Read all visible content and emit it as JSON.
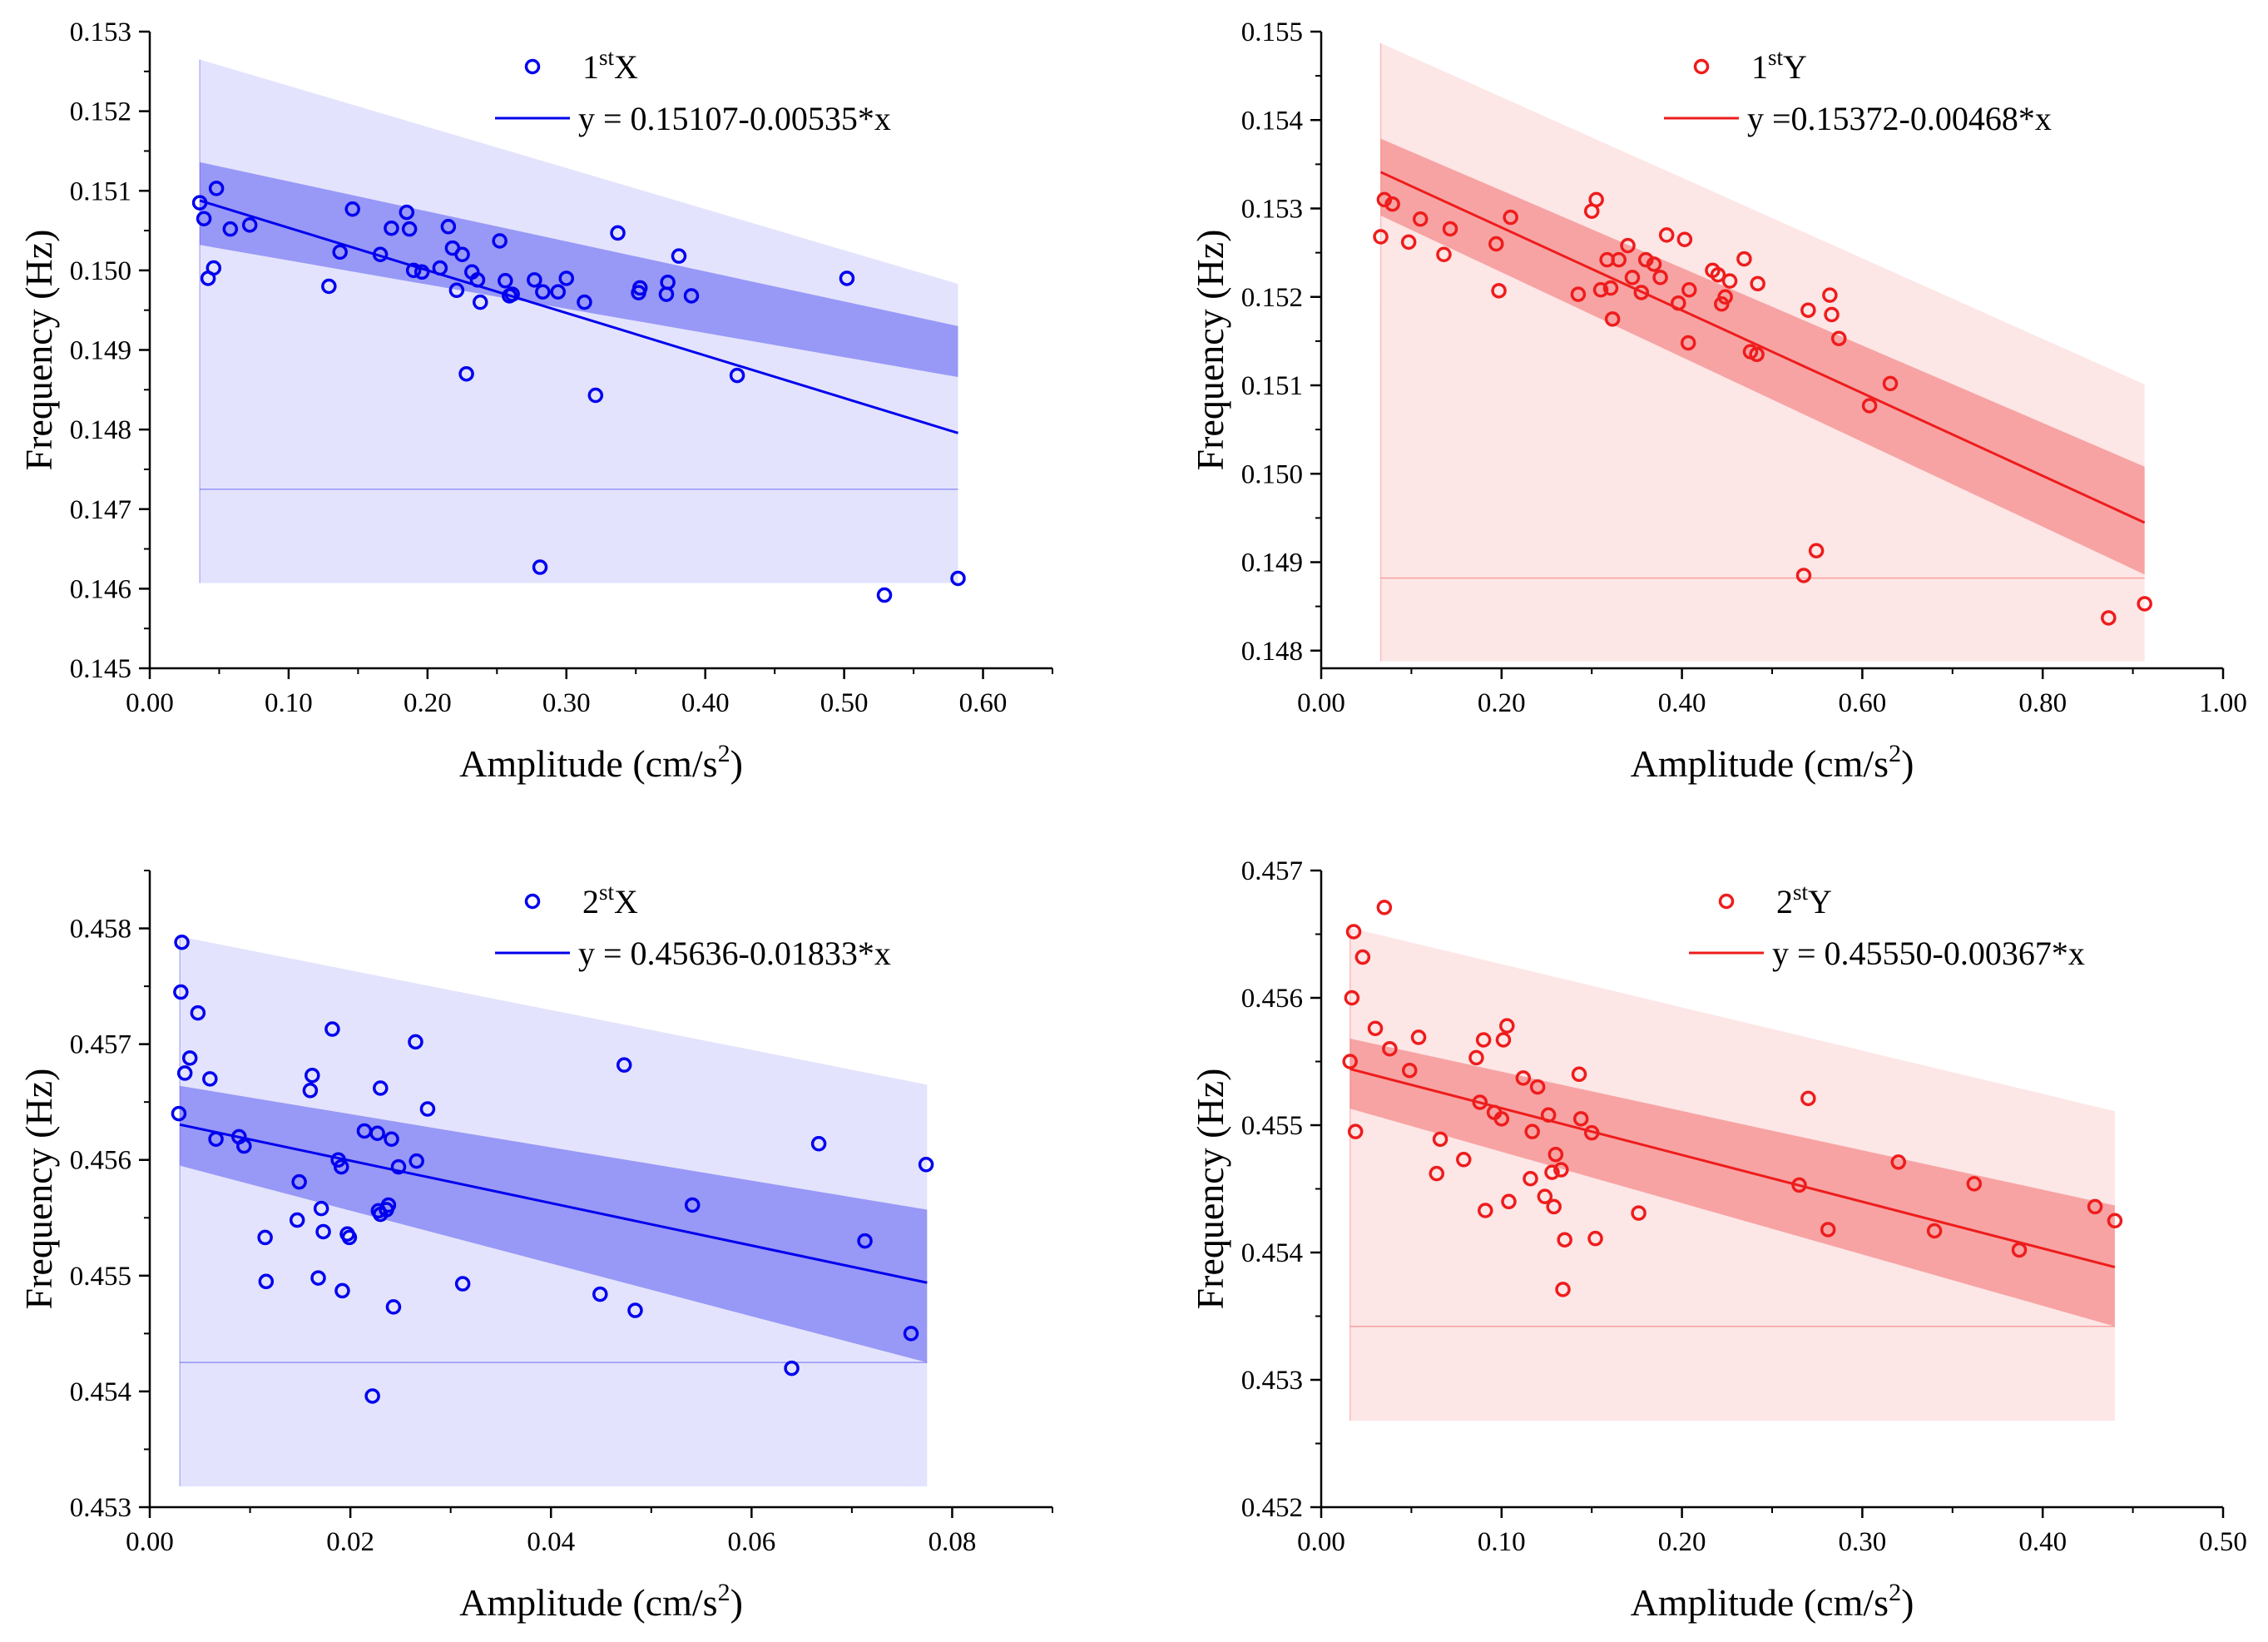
{
  "chart_data": [
    {
      "type": "scatter",
      "id": "p1",
      "color": "#0000ee",
      "legend": {
        "marker_label": "1",
        "marker_sup": "st",
        "marker_suffix": "X",
        "fit_label": "y = 0.15107-0.00535*x"
      },
      "xlabel": "Amplitude (cm/s",
      "xlabel_sup": "2",
      "xlabel_end": ")",
      "ylabel": "Frequency (Hz)",
      "xlim": [
        0.0,
        0.65
      ],
      "ylim": [
        0.145,
        0.153
      ],
      "xticks": [
        0.0,
        0.1,
        0.2,
        0.3,
        0.4,
        0.5,
        0.6
      ],
      "xtick_labels": [
        "0.00",
        "0.10",
        "0.20",
        "0.30",
        "0.40",
        "0.50",
        "0.60"
      ],
      "yticks": [
        0.145,
        0.146,
        0.147,
        0.148,
        0.149,
        0.15,
        0.151,
        0.152,
        0.153
      ],
      "ytick_labels": [
        "0.145",
        "0.146",
        "0.147",
        "0.148",
        "0.149",
        "0.150",
        "0.151",
        "0.152",
        "0.153"
      ],
      "fit": {
        "intercept": 0.15107,
        "slope": -0.00535,
        "xrange": [
          0.036,
          0.582
        ]
      },
      "confidence_band": {
        "x": [
          0.036,
          0.582
        ],
        "lower": [
          0.15032,
          0.14866
        ],
        "upper": [
          0.15136,
          0.1493
        ]
      },
      "prediction_band": {
        "x": [
          0.036,
          0.582
        ],
        "lower": [
          0.14906,
          0.14726
        ],
        "upper": [
          0.15265,
          0.14983
        ]
      },
      "band_floor": [
        0.14725,
        0.14607
      ],
      "points": [
        [
          0.036,
          0.15085
        ],
        [
          0.039,
          0.15065
        ],
        [
          0.042,
          0.1499
        ],
        [
          0.046,
          0.15003
        ],
        [
          0.048,
          0.15103
        ],
        [
          0.058,
          0.15052
        ],
        [
          0.072,
          0.15057
        ],
        [
          0.129,
          0.1498
        ],
        [
          0.137,
          0.15023
        ],
        [
          0.146,
          0.15077
        ],
        [
          0.166,
          0.1502
        ],
        [
          0.174,
          0.15053
        ],
        [
          0.185,
          0.15073
        ],
        [
          0.187,
          0.15052
        ],
        [
          0.19,
          0.15
        ],
        [
          0.196,
          0.14998
        ],
        [
          0.209,
          0.15003
        ],
        [
          0.215,
          0.15055
        ],
        [
          0.218,
          0.15028
        ],
        [
          0.221,
          0.14975
        ],
        [
          0.225,
          0.1502
        ],
        [
          0.228,
          0.1487
        ],
        [
          0.232,
          0.14998
        ],
        [
          0.236,
          0.14988
        ],
        [
          0.238,
          0.1496
        ],
        [
          0.252,
          0.15037
        ],
        [
          0.256,
          0.14987
        ],
        [
          0.259,
          0.14968
        ],
        [
          0.261,
          0.1497
        ],
        [
          0.277,
          0.14988
        ],
        [
          0.281,
          0.14627
        ],
        [
          0.283,
          0.14973
        ],
        [
          0.294,
          0.14973
        ],
        [
          0.3,
          0.1499
        ],
        [
          0.313,
          0.1496
        ],
        [
          0.321,
          0.14843
        ],
        [
          0.337,
          0.15047
        ],
        [
          0.352,
          0.14972
        ],
        [
          0.353,
          0.14978
        ],
        [
          0.372,
          0.1497
        ],
        [
          0.373,
          0.14985
        ],
        [
          0.381,
          0.15018
        ],
        [
          0.39,
          0.14968
        ],
        [
          0.423,
          0.14868
        ],
        [
          0.502,
          0.1499
        ],
        [
          0.529,
          0.14592
        ],
        [
          0.582,
          0.14613
        ]
      ]
    },
    {
      "type": "scatter",
      "id": "p2",
      "color": "#ee1c1c",
      "legend": {
        "marker_label": "1",
        "marker_sup": "st",
        "marker_suffix": "Y",
        "fit_label": "y =0.15372-0.00468*x"
      },
      "xlabel": "Amplitude (cm/s",
      "xlabel_sup": "2",
      "xlabel_end": ")",
      "ylabel": "Frequency (Hz)",
      "xlim": [
        0.0,
        1.0
      ],
      "ylim": [
        0.1478,
        0.155
      ],
      "xticks": [
        0.0,
        0.2,
        0.4,
        0.6,
        0.8,
        1.0
      ],
      "xtick_labels": [
        "0.00",
        "0.20",
        "0.40",
        "0.60",
        "0.80",
        "1.00"
      ],
      "yticks": [
        0.148,
        0.149,
        0.15,
        0.151,
        0.152,
        0.153,
        0.154,
        0.155
      ],
      "ytick_labels": [
        "0.148",
        "0.149",
        "0.150",
        "0.151",
        "0.152",
        "0.153",
        "0.154",
        "0.155"
      ],
      "fit": {
        "intercept": 0.15372,
        "slope": -0.00468,
        "xrange": [
          0.066,
          0.913
        ]
      },
      "confidence_band": {
        "x": [
          0.066,
          0.913
        ],
        "lower": [
          0.15292,
          0.14886
        ],
        "upper": [
          0.15379,
          0.15008
        ]
      },
      "prediction_band": {
        "x": [
          0.066,
          0.913
        ],
        "lower": [
          0.15192,
          0.14809
        ],
        "upper": [
          0.15487,
          0.15101
        ]
      },
      "band_floor": [
        0.14882,
        0.14788
      ],
      "points": [
        [
          0.066,
          0.15268
        ],
        [
          0.07,
          0.1531
        ],
        [
          0.079,
          0.15305
        ],
        [
          0.097,
          0.15262
        ],
        [
          0.11,
          0.15288
        ],
        [
          0.136,
          0.15248
        ],
        [
          0.143,
          0.15277
        ],
        [
          0.194,
          0.1526
        ],
        [
          0.197,
          0.15207
        ],
        [
          0.21,
          0.1529
        ],
        [
          0.285,
          0.15203
        ],
        [
          0.3,
          0.15297
        ],
        [
          0.305,
          0.1531
        ],
        [
          0.31,
          0.15208
        ],
        [
          0.317,
          0.15242
        ],
        [
          0.321,
          0.1521
        ],
        [
          0.323,
          0.15175
        ],
        [
          0.33,
          0.15242
        ],
        [
          0.34,
          0.15258
        ],
        [
          0.345,
          0.15222
        ],
        [
          0.355,
          0.15205
        ],
        [
          0.36,
          0.15242
        ],
        [
          0.369,
          0.15237
        ],
        [
          0.376,
          0.15222
        ],
        [
          0.383,
          0.1527
        ],
        [
          0.396,
          0.15193
        ],
        [
          0.403,
          0.15265
        ],
        [
          0.407,
          0.15148
        ],
        [
          0.408,
          0.15208
        ],
        [
          0.434,
          0.1523
        ],
        [
          0.44,
          0.15225
        ],
        [
          0.444,
          0.15192
        ],
        [
          0.448,
          0.152
        ],
        [
          0.453,
          0.15218
        ],
        [
          0.469,
          0.15243
        ],
        [
          0.476,
          0.15138
        ],
        [
          0.483,
          0.15135
        ],
        [
          0.484,
          0.15215
        ],
        [
          0.535,
          0.14885
        ],
        [
          0.54,
          0.15185
        ],
        [
          0.549,
          0.14913
        ],
        [
          0.564,
          0.15202
        ],
        [
          0.566,
          0.1518
        ],
        [
          0.574,
          0.15153
        ],
        [
          0.608,
          0.15077
        ],
        [
          0.631,
          0.15102
        ],
        [
          0.873,
          0.14837
        ],
        [
          0.913,
          0.14853
        ]
      ]
    },
    {
      "type": "scatter",
      "id": "p3",
      "color": "#0000ee",
      "legend": {
        "marker_label": "2",
        "marker_sup": "st",
        "marker_suffix": "X",
        "fit_label": "y = 0.45636-0.01833*x"
      },
      "xlabel": "Amplitude (cm/s",
      "xlabel_sup": "2",
      "xlabel_end": ")",
      "ylabel": "Frequency (Hz)",
      "xlim": [
        0.0,
        0.09
      ],
      "ylim": [
        0.453,
        0.4585
      ],
      "xticks": [
        0.0,
        0.02,
        0.04,
        0.06,
        0.08
      ],
      "xtick_labels": [
        "0.00",
        "0.02",
        "0.04",
        "0.06",
        "0.08"
      ],
      "yticks": [
        0.453,
        0.454,
        0.455,
        0.456,
        0.457,
        0.458
      ],
      "ytick_labels": [
        "0.453",
        "0.454",
        "0.455",
        "0.456",
        "0.457",
        "0.458"
      ],
      "fit": {
        "intercept": 0.45636,
        "slope": -0.01833,
        "xrange": [
          0.003,
          0.0775
        ]
      },
      "confidence_band": {
        "x": [
          0.003,
          0.0775
        ],
        "lower": [
          0.45595,
          0.45425
        ],
        "upper": [
          0.45664,
          0.45557
        ]
      },
      "prediction_band": {
        "x": [
          0.003,
          0.0775
        ],
        "lower": [
          0.45468,
          0.45318
        ],
        "upper": [
          0.45793,
          0.45665
        ]
      },
      "band_floor": [
        0.45425,
        0.45318
      ],
      "points": [
        [
          0.0029,
          0.4564
        ],
        [
          0.0031,
          0.45745
        ],
        [
          0.0032,
          0.45788
        ],
        [
          0.0035,
          0.45675
        ],
        [
          0.004,
          0.45688
        ],
        [
          0.0048,
          0.45727
        ],
        [
          0.006,
          0.4567
        ],
        [
          0.0066,
          0.45618
        ],
        [
          0.0089,
          0.4562
        ],
        [
          0.0094,
          0.45612
        ],
        [
          0.0115,
          0.45533
        ],
        [
          0.0116,
          0.45495
        ],
        [
          0.0147,
          0.45548
        ],
        [
          0.0149,
          0.45581
        ],
        [
          0.016,
          0.4566
        ],
        [
          0.0162,
          0.45673
        ],
        [
          0.0168,
          0.45498
        ],
        [
          0.0171,
          0.45558
        ],
        [
          0.0173,
          0.45538
        ],
        [
          0.0182,
          0.45713
        ],
        [
          0.0188,
          0.456
        ],
        [
          0.0191,
          0.45594
        ],
        [
          0.0192,
          0.45487
        ],
        [
          0.0197,
          0.45536
        ],
        [
          0.0199,
          0.45533
        ],
        [
          0.0214,
          0.45625
        ],
        [
          0.0222,
          0.45396
        ],
        [
          0.0227,
          0.45623
        ],
        [
          0.0228,
          0.45556
        ],
        [
          0.023,
          0.45553
        ],
        [
          0.023,
          0.45662
        ],
        [
          0.0236,
          0.45557
        ],
        [
          0.0238,
          0.45561
        ],
        [
          0.0241,
          0.45618
        ],
        [
          0.0243,
          0.45473
        ],
        [
          0.0248,
          0.45594
        ],
        [
          0.0265,
          0.45702
        ],
        [
          0.0266,
          0.45599
        ],
        [
          0.0277,
          0.45644
        ],
        [
          0.0312,
          0.45493
        ],
        [
          0.0449,
          0.45484
        ],
        [
          0.0473,
          0.45682
        ],
        [
          0.0484,
          0.4547
        ],
        [
          0.0541,
          0.45561
        ],
        [
          0.064,
          0.4542
        ],
        [
          0.0667,
          0.45614
        ],
        [
          0.0713,
          0.4553
        ],
        [
          0.0759,
          0.4545
        ],
        [
          0.0774,
          0.45596
        ]
      ]
    },
    {
      "type": "scatter",
      "id": "p4",
      "color": "#ee1c1c",
      "legend": {
        "marker_label": "2",
        "marker_sup": "st",
        "marker_suffix": "Y",
        "fit_label": "y = 0.45550-0.00367*x"
      },
      "xlabel": "Amplitude (cm/s",
      "xlabel_sup": "2",
      "xlabel_end": ")",
      "ylabel": "Frequency (Hz)",
      "xlim": [
        0.0,
        0.5
      ],
      "ylim": [
        0.452,
        0.457
      ],
      "xticks": [
        0.0,
        0.1,
        0.2,
        0.3,
        0.4,
        0.5
      ],
      "xtick_labels": [
        "0.00",
        "0.10",
        "0.20",
        "0.30",
        "0.40",
        "0.50"
      ],
      "yticks": [
        0.452,
        0.453,
        0.454,
        0.455,
        0.456,
        0.457
      ],
      "ytick_labels": [
        "0.452",
        "0.453",
        "0.454",
        "0.455",
        "0.456",
        "0.457"
      ],
      "fit": {
        "intercept": 0.4555,
        "slope": -0.00367,
        "xrange": [
          0.016,
          0.44
        ]
      },
      "confidence_band": {
        "x": [
          0.016,
          0.44
        ],
        "lower": [
          0.45513,
          0.45342
        ],
        "upper": [
          0.45568,
          0.45437
        ]
      },
      "prediction_band": {
        "x": [
          0.016,
          0.44
        ],
        "lower": [
          0.45431,
          0.45268
        ],
        "upper": [
          0.45655,
          0.45511
        ]
      },
      "band_floor": [
        0.45342,
        0.45268
      ],
      "points": [
        [
          0.016,
          0.4555
        ],
        [
          0.017,
          0.456
        ],
        [
          0.018,
          0.45652
        ],
        [
          0.019,
          0.45495
        ],
        [
          0.023,
          0.45632
        ],
        [
          0.03,
          0.45576
        ],
        [
          0.035,
          0.45671
        ],
        [
          0.038,
          0.4556
        ],
        [
          0.049,
          0.45543
        ],
        [
          0.054,
          0.45569
        ],
        [
          0.064,
          0.45462
        ],
        [
          0.066,
          0.45489
        ],
        [
          0.079,
          0.45473
        ],
        [
          0.086,
          0.45553
        ],
        [
          0.088,
          0.45518
        ],
        [
          0.09,
          0.45567
        ],
        [
          0.091,
          0.45433
        ],
        [
          0.096,
          0.4551
        ],
        [
          0.1,
          0.45505
        ],
        [
          0.101,
          0.45567
        ],
        [
          0.103,
          0.45578
        ],
        [
          0.104,
          0.4544
        ],
        [
          0.112,
          0.45537
        ],
        [
          0.116,
          0.45458
        ],
        [
          0.117,
          0.45495
        ],
        [
          0.12,
          0.4553
        ],
        [
          0.124,
          0.45444
        ],
        [
          0.126,
          0.45508
        ],
        [
          0.128,
          0.45463
        ],
        [
          0.129,
          0.45436
        ],
        [
          0.13,
          0.45477
        ],
        [
          0.133,
          0.45465
        ],
        [
          0.134,
          0.45371
        ],
        [
          0.135,
          0.4541
        ],
        [
          0.143,
          0.4554
        ],
        [
          0.144,
          0.45505
        ],
        [
          0.15,
          0.45494
        ],
        [
          0.152,
          0.45411
        ],
        [
          0.176,
          0.45431
        ],
        [
          0.265,
          0.45453
        ],
        [
          0.27,
          0.45521
        ],
        [
          0.281,
          0.45418
        ],
        [
          0.32,
          0.45471
        ],
        [
          0.34,
          0.45417
        ],
        [
          0.362,
          0.45454
        ],
        [
          0.387,
          0.45402
        ],
        [
          0.429,
          0.45436
        ],
        [
          0.44,
          0.45425
        ]
      ]
    }
  ]
}
